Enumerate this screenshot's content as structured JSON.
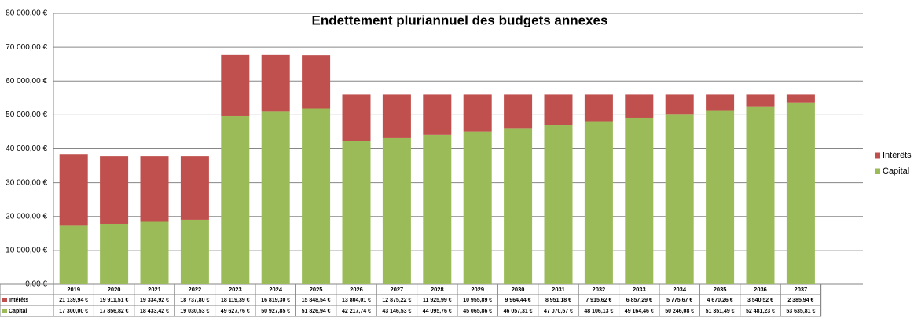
{
  "chart_data": {
    "type": "stacked_bar",
    "title": "Endettement pluriannuel des budgets annexes",
    "categories": [
      "2019",
      "2020",
      "2021",
      "2022",
      "2023",
      "2024",
      "2025",
      "2026",
      "2027",
      "2028",
      "2029",
      "2030",
      "2031",
      "2032",
      "2033",
      "2034",
      "2035",
      "2036",
      "2037"
    ],
    "series": [
      {
        "name": "Capital",
        "color": "#9bbb59",
        "values": [
          17300.0,
          17856.82,
          18433.42,
          19030.53,
          49627.76,
          50927.85,
          51826.94,
          42217.74,
          43146.53,
          44095.76,
          45065.86,
          46057.31,
          47070.57,
          48106.13,
          49164.46,
          50246.08,
          51351.49,
          52481.23,
          53635.81
        ],
        "value_labels": [
          "17 300,00 €",
          "17 856,82 €",
          "18 433,42 €",
          "19 030,53 €",
          "49 627,76 €",
          "50 927,85 €",
          "51 826,94 €",
          "42 217,74 €",
          "43 146,53 €",
          "44 095,76 €",
          "45 065,86 €",
          "46 057,31 €",
          "47 070,57 €",
          "48 106,13 €",
          "49 164,46 €",
          "50 246,08 €",
          "51 351,49 €",
          "52 481,23 €",
          "53 635,81 €"
        ]
      },
      {
        "name": "Intérêts",
        "color": "#c0504d",
        "values": [
          21139.94,
          19911.51,
          19334.92,
          18737.8,
          18119.39,
          16819.3,
          15848.54,
          13804.01,
          12875.22,
          11925.99,
          10955.89,
          9964.44,
          8951.18,
          7915.62,
          6857.29,
          5775.67,
          4670.26,
          3540.52,
          2385.94
        ],
        "value_labels": [
          "21 139,94 €",
          "19 911,51 €",
          "19 334,92 €",
          "18 737,80 €",
          "18 119,39 €",
          "16 819,30 €",
          "15 848,54 €",
          "13 804,01 €",
          "12 875,22 €",
          "11 925,99 €",
          "10 955,89 €",
          "9 964,44 €",
          "8 951,18 €",
          "7 915,62 €",
          "6 857,29 €",
          "5 775,67 €",
          "4 670,26 €",
          "3 540,52 €",
          "2 385,94 €"
        ]
      }
    ],
    "ylim": [
      0,
      80000
    ],
    "yticks": [
      {
        "value": 0,
        "label": "0,00 €"
      },
      {
        "value": 10000,
        "label": "10 000,00 €"
      },
      {
        "value": 20000,
        "label": "20 000,00 €"
      },
      {
        "value": 30000,
        "label": "30 000,00 €"
      },
      {
        "value": 40000,
        "label": "40 000,00 €"
      },
      {
        "value": 50000,
        "label": "50 000,00 €"
      },
      {
        "value": 60000,
        "label": "60 000,00 €"
      },
      {
        "value": 70000,
        "label": "70 000,00 €"
      },
      {
        "value": 80000,
        "label": "80 000,00 €"
      }
    ],
    "grid": true,
    "legend": "right"
  }
}
